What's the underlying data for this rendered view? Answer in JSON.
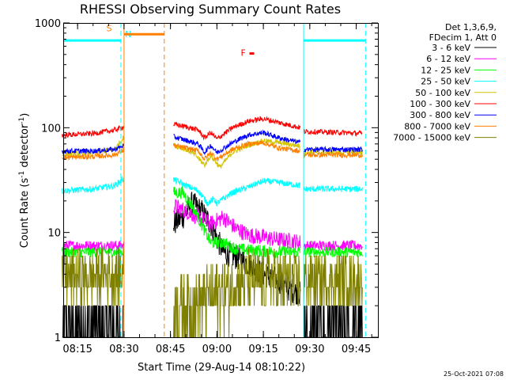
{
  "chart_data": {
    "type": "line",
    "title": "RHESSI Observing Summary Count Rates",
    "xlabel": "Start Time (29-Aug-14 08:10:22)",
    "ylabel": "Count Rate (s",
    "ylabel_sup1": "-1",
    "ylabel_mid": " detector",
    "ylabel_sup2": "-1",
    "ylabel_end": ")",
    "y_scale": "log",
    "ylim": [
      1,
      1000
    ],
    "y_ticks": [
      {
        "value": 1,
        "label": "1"
      },
      {
        "value": 10,
        "label": "10"
      },
      {
        "value": 100,
        "label": "100"
      },
      {
        "value": 1000,
        "label": "1000"
      }
    ],
    "x_range": [
      "08:10:22",
      "09:52:00"
    ],
    "x_ticks": [
      {
        "time": "08:15",
        "label": "08:15"
      },
      {
        "time": "08:30",
        "label": "08:30"
      },
      {
        "time": "08:45",
        "label": "08:45"
      },
      {
        "time": "09:00",
        "label": "09:00"
      },
      {
        "time": "09:15",
        "label": "09:15"
      },
      {
        "time": "09:30",
        "label": "09:30"
      },
      {
        "time": "09:45",
        "label": "09:45"
      }
    ],
    "legend_header": [
      "Det 1,3,6,9,",
      "FDecim 1, Att 0"
    ],
    "legend_placement": "right",
    "series": [
      {
        "name": "3 - 6 keV",
        "color": "#000000",
        "segments": [
          {
            "points": [
              [
                "08:10",
                1.3
              ],
              [
                "08:20",
                1.4
              ],
              [
                "08:30",
                1.3
              ]
            ],
            "noise": 0.2,
            "quantized": true
          },
          {
            "points": [
              [
                "08:46",
                12
              ],
              [
                "08:49",
                14
              ],
              [
                "08:52",
                19
              ],
              [
                "08:55",
                16
              ],
              [
                "08:58",
                12
              ],
              [
                "09:02",
                6.5
              ],
              [
                "09:08",
                5.5
              ],
              [
                "09:15",
                4
              ],
              [
                "09:20",
                3.5
              ],
              [
                "09:22",
                3.0
              ],
              [
                "09:27",
                2.6
              ]
            ],
            "noise": 0.12
          },
          {
            "points": [
              [
                "09:28",
                1.3
              ],
              [
                "09:40",
                1.3
              ],
              [
                "09:47",
                1.3
              ]
            ],
            "noise": 0.2,
            "quantized": true
          }
        ]
      },
      {
        "name": "6 - 12 keV",
        "color": "#ff00ff",
        "segments": [
          {
            "points": [
              [
                "08:10",
                7.5
              ],
              [
                "08:20",
                7.5
              ],
              [
                "08:30",
                7.5
              ]
            ],
            "noise": 0.05
          },
          {
            "points": [
              [
                "08:46",
                18
              ],
              [
                "08:50",
                16
              ],
              [
                "08:54",
                14
              ],
              [
                "08:58",
                12
              ],
              [
                "09:02",
                14
              ],
              [
                "09:06",
                11
              ],
              [
                "09:10",
                9.5
              ],
              [
                "09:15",
                9
              ],
              [
                "09:20",
                8.5
              ],
              [
                "09:25",
                8.2
              ],
              [
                "09:27",
                8
              ]
            ],
            "noise": 0.08
          },
          {
            "points": [
              [
                "09:28",
                7.5
              ],
              [
                "09:40",
                7.5
              ],
              [
                "09:47",
                7.5
              ]
            ],
            "noise": 0.05
          }
        ]
      },
      {
        "name": "12 - 25 keV",
        "color": "#00ff00",
        "segments": [
          {
            "points": [
              [
                "08:10",
                6.5
              ],
              [
                "08:20",
                6.5
              ],
              [
                "08:30",
                6.5
              ]
            ],
            "noise": 0.05
          },
          {
            "points": [
              [
                "08:46",
                24
              ],
              [
                "08:49",
                24
              ],
              [
                "08:52",
                18
              ],
              [
                "08:55",
                12
              ],
              [
                "08:58",
                8
              ],
              [
                "09:02",
                8
              ],
              [
                "09:06",
                7
              ],
              [
                "09:10",
                6.8
              ],
              [
                "09:20",
                6.5
              ],
              [
                "09:27",
                6.5
              ]
            ],
            "noise": 0.06
          },
          {
            "points": [
              [
                "09:28",
                6.5
              ],
              [
                "09:40",
                6.5
              ],
              [
                "09:47",
                6.5
              ]
            ],
            "noise": 0.05
          }
        ]
      },
      {
        "name": "25 - 50 keV",
        "color": "#00ffff",
        "segments": [
          {
            "points": [
              [
                "08:10",
                25
              ],
              [
                "08:20",
                26
              ],
              [
                "08:27",
                28
              ],
              [
                "08:30",
                33
              ]
            ],
            "noise": 0.03
          },
          {
            "points": [
              [
                "08:46",
                32
              ],
              [
                "08:50",
                28
              ],
              [
                "08:54",
                25
              ],
              [
                "08:57",
                19
              ],
              [
                "08:59",
                21
              ],
              [
                "09:00",
                19
              ],
              [
                "09:05",
                24
              ],
              [
                "09:10",
                27
              ],
              [
                "09:15",
                31
              ],
              [
                "09:20",
                30
              ],
              [
                "09:27",
                28
              ]
            ],
            "noise": 0.03
          },
          {
            "points": [
              [
                "09:28",
                26
              ],
              [
                "09:40",
                26
              ],
              [
                "09:47",
                26
              ]
            ],
            "noise": 0.03
          }
        ]
      },
      {
        "name": "50 - 100 keV",
        "color": "#d4c400",
        "segments": [
          {
            "points": [
              [
                "08:10",
                55
              ],
              [
                "08:20",
                58
              ],
              [
                "08:27",
                62
              ],
              [
                "08:30",
                82
              ]
            ],
            "noise": 0.025
          },
          {
            "points": [
              [
                "08:46",
                68
              ],
              [
                "08:50",
                62
              ],
              [
                "08:53",
                55
              ],
              [
                "08:56",
                44
              ],
              [
                "08:58",
                54
              ],
              [
                "09:01",
                42
              ],
              [
                "09:05",
                58
              ],
              [
                "09:10",
                68
              ],
              [
                "09:15",
                75
              ],
              [
                "09:20",
                72
              ],
              [
                "09:27",
                67
              ]
            ],
            "noise": 0.025
          },
          {
            "points": [
              [
                "09:28",
                58
              ],
              [
                "09:40",
                58
              ],
              [
                "09:47",
                58
              ]
            ],
            "noise": 0.025
          }
        ]
      },
      {
        "name": "100 - 300 keV",
        "color": "#ff0000",
        "segments": [
          {
            "points": [
              [
                "08:10",
                85
              ],
              [
                "08:20",
                88
              ],
              [
                "08:27",
                95
              ],
              [
                "08:30",
                102
              ]
            ],
            "noise": 0.025
          },
          {
            "points": [
              [
                "08:46",
                108
              ],
              [
                "08:50",
                102
              ],
              [
                "08:54",
                95
              ],
              [
                "08:56",
                80
              ],
              [
                "08:58",
                90
              ],
              [
                "09:00",
                78
              ],
              [
                "09:05",
                100
              ],
              [
                "09:10",
                115
              ],
              [
                "09:15",
                122
              ],
              [
                "09:20",
                112
              ],
              [
                "09:27",
                100
              ]
            ],
            "noise": 0.025
          },
          {
            "points": [
              [
                "09:28",
                92
              ],
              [
                "09:40",
                90
              ],
              [
                "09:47",
                88
              ]
            ],
            "noise": 0.025
          }
        ]
      },
      {
        "name": "300 - 800 keV",
        "color": "#0000ff",
        "segments": [
          {
            "points": [
              [
                "08:10",
                60
              ],
              [
                "08:20",
                60
              ],
              [
                "08:27",
                62
              ],
              [
                "08:30",
                68
              ]
            ],
            "noise": 0.025
          },
          {
            "points": [
              [
                "08:46",
                82
              ],
              [
                "08:50",
                76
              ],
              [
                "08:54",
                70
              ],
              [
                "08:56",
                58
              ],
              [
                "08:58",
                68
              ],
              [
                "09:00",
                58
              ],
              [
                "09:05",
                72
              ],
              [
                "09:10",
                85
              ],
              [
                "09:15",
                90
              ],
              [
                "09:20",
                80
              ],
              [
                "09:27",
                72
              ]
            ],
            "noise": 0.025
          },
          {
            "points": [
              [
                "09:28",
                62
              ],
              [
                "09:40",
                62
              ],
              [
                "09:47",
                62
              ]
            ],
            "noise": 0.025
          }
        ]
      },
      {
        "name": "800 - 7000 keV",
        "color": "#ff8000",
        "segments": [
          {
            "points": [
              [
                "08:10",
                52
              ],
              [
                "08:20",
                53
              ],
              [
                "08:27",
                55
              ],
              [
                "08:30",
                62
              ]
            ],
            "noise": 0.025
          },
          {
            "points": [
              [
                "08:46",
                68
              ],
              [
                "08:50",
                64
              ],
              [
                "08:54",
                60
              ],
              [
                "08:56",
                50
              ],
              [
                "08:58",
                58
              ],
              [
                "09:00",
                50
              ],
              [
                "09:05",
                62
              ],
              [
                "09:10",
                70
              ],
              [
                "09:15",
                72
              ],
              [
                "09:20",
                64
              ],
              [
                "09:27",
                60
              ]
            ],
            "noise": 0.025
          },
          {
            "points": [
              [
                "09:28",
                55
              ],
              [
                "09:40",
                55
              ],
              [
                "09:47",
                55
              ]
            ],
            "noise": 0.025
          }
        ]
      },
      {
        "name": "7000 - 15000 keV",
        "color": "#808000",
        "segments": [
          {
            "points": [
              [
                "08:10",
                3.8
              ],
              [
                "08:20",
                3.8
              ],
              [
                "08:30",
                4.2
              ]
            ],
            "noise": 0.25,
            "quantized": true
          },
          {
            "points": [
              [
                "08:46",
                2
              ],
              [
                "08:55",
                2.2
              ],
              [
                "09:00",
                2.6
              ],
              [
                "09:10",
                3.5
              ],
              [
                "09:20",
                3.5
              ],
              [
                "09:27",
                3.2
              ]
            ],
            "noise": 0.3,
            "quantized": true
          },
          {
            "points": [
              [
                "09:28",
                3.5
              ],
              [
                "09:40",
                3.5
              ],
              [
                "09:47",
                3.5
              ]
            ],
            "noise": 0.25,
            "quantized": true
          }
        ]
      }
    ],
    "annotations": [
      {
        "kind": "solid-vline",
        "time": "08:30",
        "color": "#ff8000"
      },
      {
        "kind": "dashed-vline",
        "time": "08:29",
        "color": "#00ffff"
      },
      {
        "kind": "dashed-vline",
        "time": "08:43",
        "color": "#ff8000"
      },
      {
        "kind": "solid-vline",
        "time": "09:28",
        "color": "#00ffff"
      },
      {
        "kind": "dashed-vline",
        "time": "09:48",
        "color": "#00ffff"
      },
      {
        "kind": "flag-bar",
        "from": "08:10:22",
        "to": "08:29",
        "level": 680,
        "color": "#00ffff",
        "label": "N",
        "label_time": "08:29"
      },
      {
        "kind": "flag-bar",
        "from": "08:30",
        "to": "08:43",
        "level": 780,
        "color": "#ff8000",
        "label": "S",
        "label_time": "08:23"
      },
      {
        "kind": "flag-bar",
        "from": "09:28",
        "to": "09:48",
        "level": 680,
        "color": "#00ffff",
        "label": "",
        "label_time": ""
      },
      {
        "kind": "flag-marker",
        "time": "09:10",
        "level": 520,
        "color": "#ff0000",
        "label": "F"
      }
    ]
  },
  "footer": {
    "timestamp": "25-Oct-2021 07:08"
  }
}
